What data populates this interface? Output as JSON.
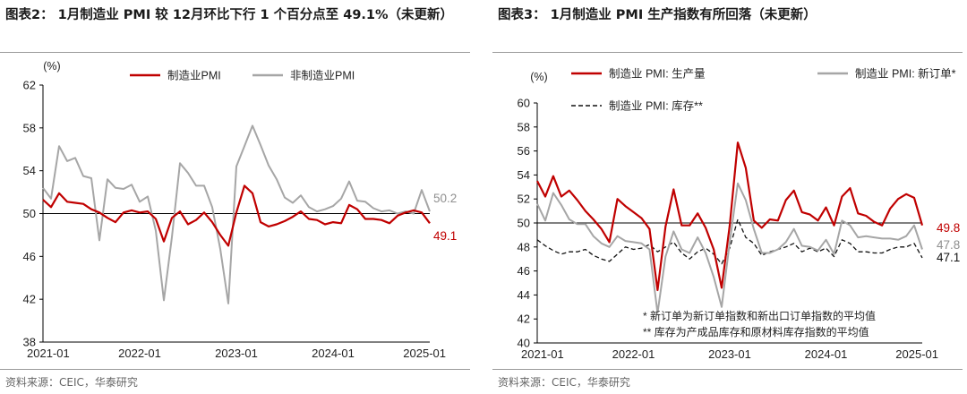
{
  "left": {
    "title": "图表2： 1月制造业 PMI 较 12月环比下行 1 个百分点至 49.1%（未更新）",
    "source": "资料来源：CEIC，华泰研究",
    "unit": "(%)",
    "chart_data": {
      "type": "line",
      "title": "图表2： 1月制造业 PMI 较 12月环比下行 1 个百分点至 49.1%（未更新）",
      "ylabel": "(%)",
      "ylim": [
        38,
        62
      ],
      "yticks": [
        "62",
        "58",
        "54",
        "50",
        "46",
        "42",
        "38"
      ],
      "xticks": [
        "2021-01",
        "2022-01",
        "2023-01",
        "2024-01",
        "2025-01"
      ],
      "reference_line": 50,
      "x_start": "2021-01",
      "series": [
        {
          "name": "制造业PMI",
          "color": "#c00000",
          "end_label": "49.1",
          "values": [
            51.3,
            50.6,
            51.9,
            51.1,
            51.0,
            50.9,
            50.4,
            50.1,
            49.6,
            49.2,
            50.1,
            50.3,
            50.1,
            50.2,
            49.5,
            47.4,
            49.6,
            50.2,
            49.0,
            49.4,
            50.1,
            49.2,
            48.0,
            47.0,
            50.1,
            52.6,
            51.9,
            49.2,
            48.8,
            49.0,
            49.3,
            49.7,
            50.2,
            49.5,
            49.4,
            49.0,
            49.2,
            49.1,
            50.8,
            50.4,
            49.5,
            49.5,
            49.4,
            49.1,
            49.8,
            50.1,
            50.3,
            50.1,
            49.1
          ]
        },
        {
          "name": "非制造业PMI",
          "color": "#a6a6a6",
          "end_label": "50.2",
          "values": [
            52.4,
            51.4,
            56.3,
            54.9,
            55.2,
            53.5,
            53.3,
            47.5,
            53.2,
            52.4,
            52.3,
            52.7,
            51.1,
            51.6,
            48.4,
            41.9,
            47.8,
            54.7,
            53.8,
            52.6,
            52.6,
            50.6,
            46.7,
            41.6,
            54.4,
            56.3,
            58.2,
            56.4,
            54.5,
            53.2,
            51.5,
            51.0,
            51.7,
            50.6,
            50.2,
            50.4,
            50.7,
            51.4,
            53.0,
            51.2,
            51.1,
            50.5,
            50.2,
            50.3,
            50.0,
            50.2,
            50.0,
            52.2,
            50.2
          ]
        }
      ],
      "legend": "top-center"
    }
  },
  "right": {
    "title": "图表3： 1月制造业 PMI 生产指数有所回落（未更新）",
    "source": "资料来源：CEIC，华泰研究",
    "unit": "(%)",
    "notes": [
      "*  新订单为新订单指数和新出口订单指数的平均值",
      "**  库存为产成品库存和原材料库存指数的平均值"
    ],
    "chart_data": {
      "type": "line",
      "title": "图表3： 1月制造业 PMI 生产指数有所回落（未更新）",
      "ylabel": "(%)",
      "ylim": [
        40,
        60
      ],
      "yticks": [
        "60",
        "58",
        "56",
        "54",
        "52",
        "50",
        "48",
        "46",
        "44",
        "42",
        "40"
      ],
      "xticks": [
        "2021-01",
        "2022-01",
        "2023-01",
        "2024-01",
        "2025-01"
      ],
      "reference_line": 50,
      "x_start": "2021-01",
      "series": [
        {
          "name": "制造业 PMI: 生产量",
          "color": "#c00000",
          "style": "solid",
          "end_label": "49.8",
          "values": [
            53.5,
            52.2,
            53.9,
            52.2,
            52.7,
            51.9,
            51.0,
            50.3,
            49.5,
            48.4,
            52.0,
            51.4,
            50.9,
            50.4,
            49.5,
            44.4,
            49.7,
            52.8,
            49.8,
            49.8,
            50.8,
            49.6,
            47.8,
            44.6,
            49.8,
            56.7,
            54.6,
            50.2,
            49.6,
            50.3,
            50.2,
            51.9,
            52.7,
            50.9,
            50.7,
            50.2,
            51.3,
            49.8,
            52.2,
            52.9,
            50.8,
            50.6,
            50.1,
            49.8,
            51.2,
            52.0,
            52.4,
            52.1,
            49.8
          ]
        },
        {
          "name": "制造业 PMI: 新订单*",
          "color": "#a6a6a6",
          "style": "solid",
          "end_label": "47.8",
          "values": [
            51.6,
            50.2,
            52.5,
            51.5,
            50.3,
            49.9,
            49.9,
            48.9,
            48.3,
            48.0,
            48.9,
            48.5,
            48.4,
            48.3,
            47.8,
            42.5,
            47.2,
            49.3,
            47.8,
            47.5,
            48.8,
            47.5,
            45.5,
            43.0,
            48.4,
            53.3,
            51.9,
            49.5,
            47.5,
            47.5,
            47.8,
            48.4,
            49.5,
            48.1,
            48.0,
            47.7,
            48.6,
            47.4,
            50.2,
            49.8,
            48.8,
            48.9,
            48.8,
            48.7,
            48.7,
            48.6,
            48.9,
            49.8,
            47.8
          ]
        },
        {
          "name": "制造业 PMI: 库存**",
          "color": "#111111",
          "style": "dashed",
          "end_label": "47.1",
          "values": [
            48.6,
            48.1,
            47.7,
            47.4,
            47.6,
            47.6,
            47.8,
            47.3,
            47.0,
            46.8,
            47.4,
            48.0,
            47.8,
            47.9,
            48.2,
            47.6,
            48.0,
            48.4,
            47.5,
            47.0,
            47.6,
            47.9,
            47.4,
            46.6,
            47.9,
            50.3,
            48.8,
            48.3,
            47.3,
            47.6,
            47.8,
            48.0,
            48.3,
            47.6,
            47.9,
            47.6,
            47.9,
            47.2,
            48.6,
            48.3,
            47.6,
            47.6,
            47.5,
            47.5,
            47.8,
            48.0,
            48.0,
            48.3,
            47.1
          ]
        }
      ],
      "legend": "top"
    }
  }
}
